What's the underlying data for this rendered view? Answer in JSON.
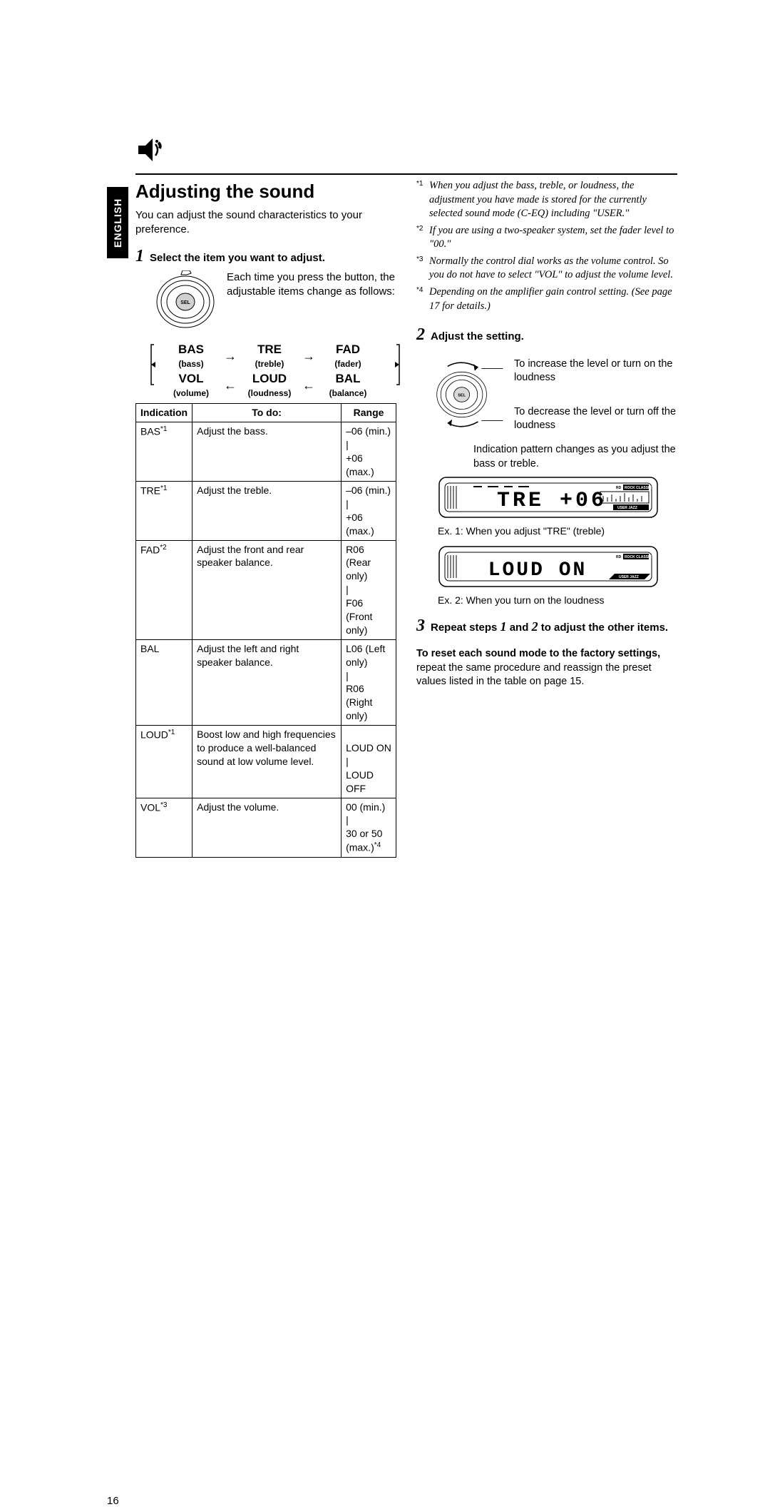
{
  "language_tab": "ENGLISH",
  "section_title": "Adjusting the sound",
  "intro": "You can adjust the sound characteristics to your preference.",
  "step1": {
    "num": "1",
    "title": "Select the item you want to adjust.",
    "press_text": "Each time you press the button, the adjustable items change as follows:"
  },
  "flow": {
    "bas": {
      "big": "BAS",
      "small": "(bass)"
    },
    "tre": {
      "big": "TRE",
      "small": "(treble)"
    },
    "fad": {
      "big": "FAD",
      "small": "(fader)"
    },
    "vol": {
      "big": "VOL",
      "small": "(volume)"
    },
    "loud": {
      "big": "LOUD",
      "small": "(loudness)"
    },
    "bal": {
      "big": "BAL",
      "small": "(balance)"
    }
  },
  "table": {
    "headers": {
      "c1": "Indication",
      "c2": "To do:",
      "c3": "Range"
    },
    "rows": [
      {
        "ind": "BAS",
        "sup": "*1",
        "todo": "Adjust the bass.",
        "range": "–06 (min.)\n|\n+06 (max.)"
      },
      {
        "ind": "TRE",
        "sup": "*1",
        "todo": "Adjust the treble.",
        "range": "–06 (min.)\n|\n+06 (max.)"
      },
      {
        "ind": "FAD",
        "sup": "*2",
        "todo": "Adjust the front and rear speaker balance.",
        "range": "R06 (Rear only)\n|\nF06 (Front only)"
      },
      {
        "ind": "BAL",
        "sup": "",
        "todo": "Adjust the left and right speaker balance.",
        "range": "L06 (Left only)\n|\nR06 (Right only)"
      },
      {
        "ind": "LOUD",
        "sup": "*1",
        "todo": "Boost low and high frequencies to produce a well-balanced sound at low volume level.",
        "range": "\nLOUD ON\n|\nLOUD OFF"
      },
      {
        "ind": "VOL",
        "sup": "*3",
        "todo": "Adjust the volume.",
        "range": "00 (min.)\n|\n30 or 50 (max.)*4"
      }
    ]
  },
  "footnotes": {
    "f1": {
      "sup": "*1",
      "text": "When you adjust the bass, treble, or loudness, the adjustment you have made is stored for the currently selected sound mode (C-EQ) including \"USER.\""
    },
    "f2": {
      "sup": "*2",
      "text": "If you are using a two-speaker system, set the fader level to \"00.\""
    },
    "f3": {
      "sup": "*3",
      "text": "Normally the control dial works as the volume control. So you do not have to select \"VOL\" to adjust the volume level."
    },
    "f4": {
      "sup": "*4",
      "text": "Depending on the amplifier gain control setting. (See page 17 for details.)"
    }
  },
  "step2": {
    "num": "2",
    "title": "Adjust the setting.",
    "increase": "To increase the level or turn on the loudness",
    "decrease": "To decrease the level or turn off the loudness",
    "pattern": "Indication pattern changes as you adjust the bass or treble.",
    "ex1_display": "T R E   + 0 6",
    "ex1_caption": "Ex. 1: When you adjust \"TRE\" (treble)",
    "ex2_display": "L O U D   O N",
    "ex2_caption": "Ex. 2: When you turn on the loudness"
  },
  "step3": {
    "num": "3",
    "title_before": "Repeat steps ",
    "one": "1",
    "mid": " and ",
    "two": "2",
    "title_after": " to adjust the other items."
  },
  "reset": {
    "bold": "To reset each sound mode to the factory settings,",
    "rest": " repeat the same procedure and reassign the preset values listed in the table on page 15."
  },
  "page_number": "16"
}
